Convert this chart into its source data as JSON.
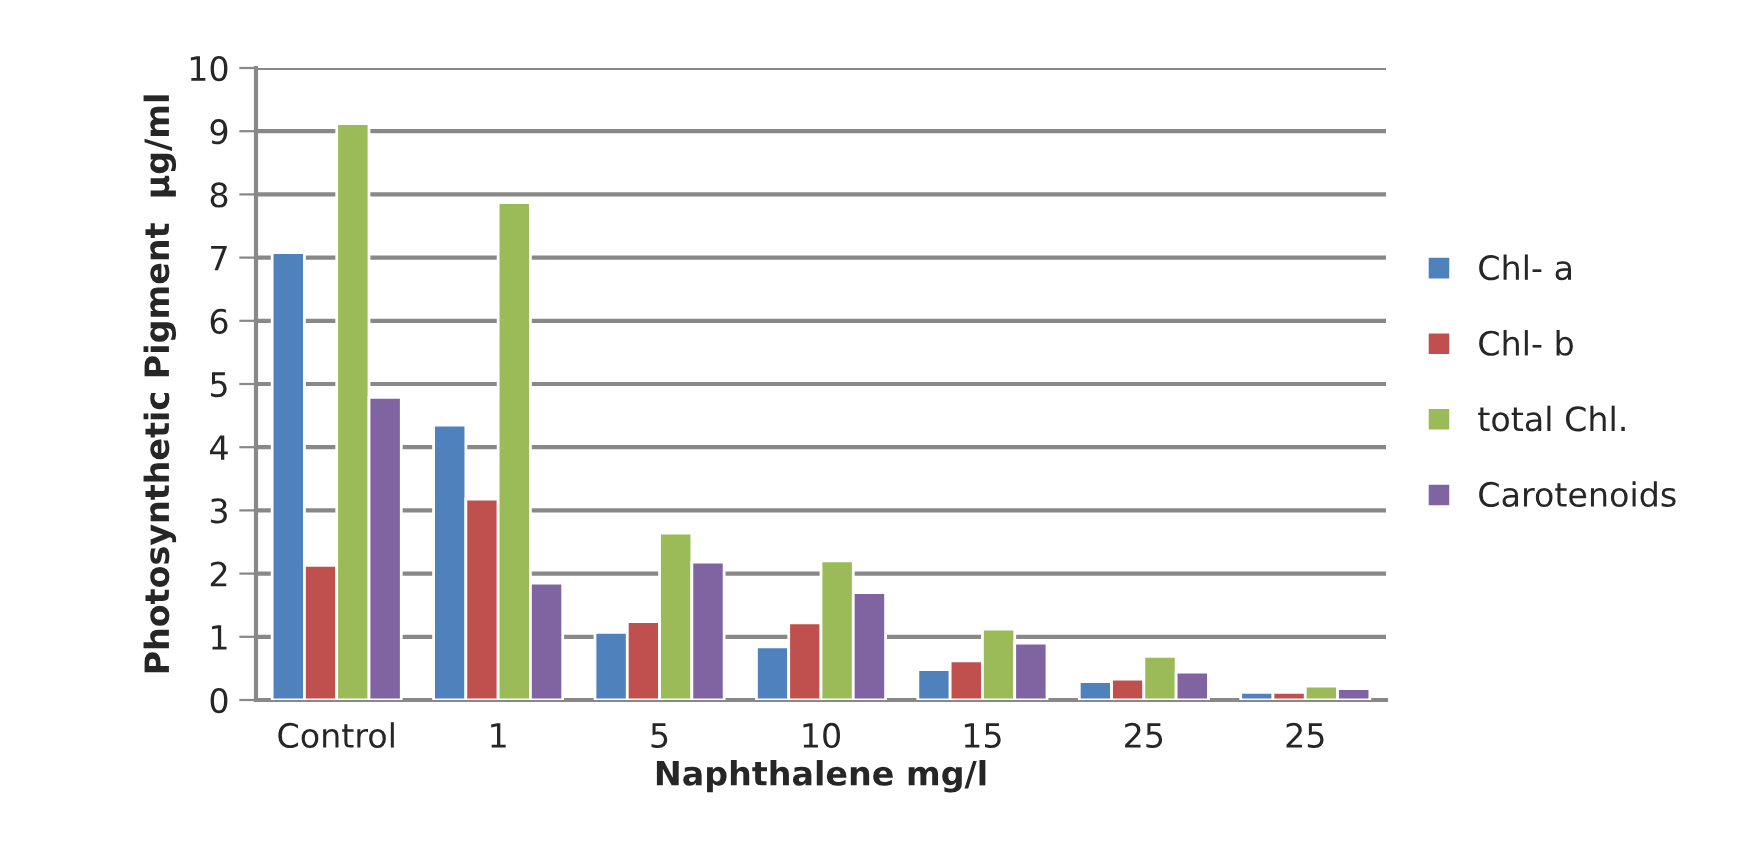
{
  "chart_data": {
    "type": "bar",
    "xlabel": "Naphthalene mg/l",
    "ylabel": "Photosynthetic Pigment  µg/ml",
    "categories": [
      "Control",
      "1",
      "5",
      "10",
      "15",
      "25",
      "25"
    ],
    "series": [
      {
        "name": "Chl- a",
        "color": "#4f81bd",
        "values": [
          7.08,
          4.35,
          1.07,
          0.84,
          0.48,
          0.29,
          0.12
        ]
      },
      {
        "name": "Chl- b",
        "color": "#c0504d",
        "values": [
          2.13,
          3.18,
          1.24,
          1.22,
          0.62,
          0.33,
          0.12
        ]
      },
      {
        "name": "total Chl.",
        "color": "#9bbb59",
        "values": [
          9.12,
          7.87,
          2.64,
          2.2,
          1.12,
          0.69,
          0.22
        ]
      },
      {
        "name": "Carotenoids",
        "color": "#8064a2",
        "values": [
          4.79,
          1.85,
          2.18,
          1.7,
          0.9,
          0.44,
          0.18
        ]
      }
    ],
    "ylim": [
      0,
      10
    ],
    "yticks": [
      0,
      1,
      2,
      3,
      4,
      5,
      6,
      7,
      8,
      9,
      10
    ],
    "grid": "y",
    "legend": "right"
  }
}
